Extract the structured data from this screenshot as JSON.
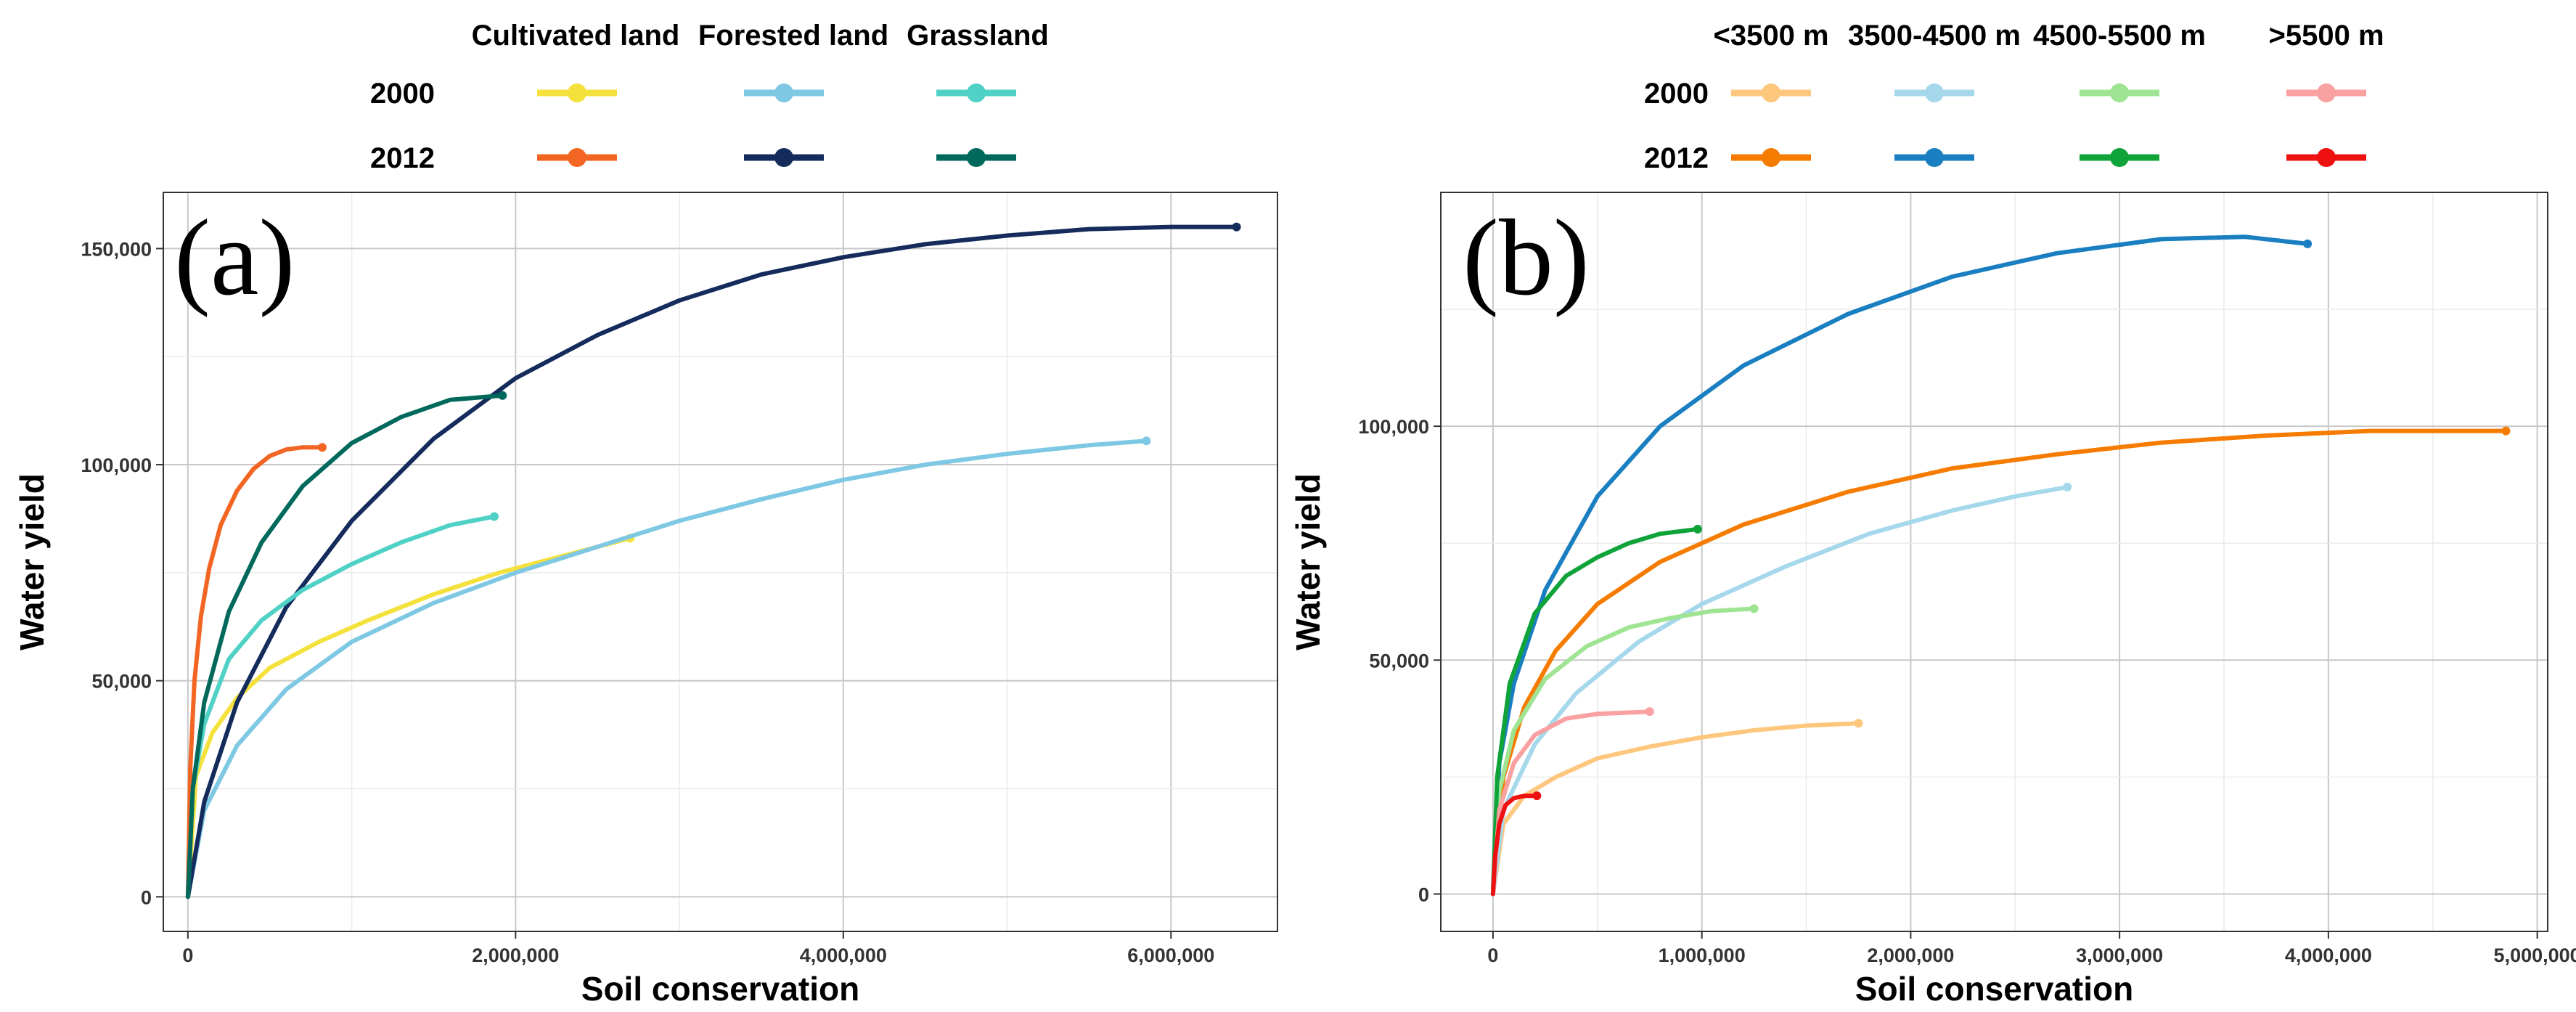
{
  "chart_data": [
    {
      "type": "line",
      "panel_label": "(a)",
      "xlabel": "Soil conservation",
      "ylabel": "Water yield",
      "xlim": [
        -150000,
        6650000
      ],
      "ylim": [
        -8000,
        163000
      ],
      "x_ticks": [
        0,
        2000000,
        4000000,
        6000000
      ],
      "x_tick_labels": [
        "0",
        "2,000,000",
        "4,000,000",
        "6,000,000"
      ],
      "y_ticks": [
        0,
        50000,
        100000,
        150000
      ],
      "y_tick_labels": [
        "0",
        "50,000",
        "100,000",
        "150,000"
      ],
      "grid": true,
      "legend": {
        "placement": "top",
        "columns": [
          "Cultivated land",
          "Forested land",
          "Grassland"
        ],
        "rows": [
          "2000",
          "2012"
        ]
      },
      "series": [
        {
          "name": "Cultivated land",
          "year": "2000",
          "color": "#f5e13c",
          "points": [
            [
              0,
              0
            ],
            [
              50000,
              28000
            ],
            [
              150000,
              38000
            ],
            [
              300000,
              46000
            ],
            [
              500000,
              53000
            ],
            [
              800000,
              59000
            ],
            [
              1100000,
              64000
            ],
            [
              1500000,
              70000
            ],
            [
              1900000,
              75000
            ],
            [
              2300000,
              79000
            ],
            [
              2700000,
              83000
            ]
          ]
        },
        {
          "name": "Cultivated land",
          "year": "2012",
          "color": "#f26522",
          "points": [
            [
              0,
              0
            ],
            [
              15000,
              30000
            ],
            [
              40000,
              50000
            ],
            [
              80000,
              65000
            ],
            [
              130000,
              76000
            ],
            [
              200000,
              86000
            ],
            [
              300000,
              94000
            ],
            [
              400000,
              99000
            ],
            [
              500000,
              102000
            ],
            [
              600000,
              103500
            ],
            [
              700000,
              104000
            ],
            [
              820000,
              104000
            ]
          ]
        },
        {
          "name": "Forested land",
          "year": "2000",
          "color": "#7ec8e3",
          "points": [
            [
              0,
              0
            ],
            [
              100000,
              20000
            ],
            [
              300000,
              35000
            ],
            [
              600000,
              48000
            ],
            [
              1000000,
              59000
            ],
            [
              1500000,
              68000
            ],
            [
              2000000,
              75000
            ],
            [
              2500000,
              81000
            ],
            [
              3000000,
              87000
            ],
            [
              3500000,
              92000
            ],
            [
              4000000,
              96500
            ],
            [
              4500000,
              100000
            ],
            [
              5000000,
              102500
            ],
            [
              5500000,
              104500
            ],
            [
              5850000,
              105500
            ]
          ]
        },
        {
          "name": "Forested land",
          "year": "2012",
          "color": "#142b5c",
          "points": [
            [
              0,
              0
            ],
            [
              100000,
              22000
            ],
            [
              300000,
              45000
            ],
            [
              600000,
              67000
            ],
            [
              1000000,
              87000
            ],
            [
              1500000,
              106000
            ],
            [
              2000000,
              120000
            ],
            [
              2500000,
              130000
            ],
            [
              3000000,
              138000
            ],
            [
              3500000,
              144000
            ],
            [
              4000000,
              148000
            ],
            [
              4500000,
              151000
            ],
            [
              5000000,
              153000
            ],
            [
              5500000,
              154500
            ],
            [
              6000000,
              155000
            ],
            [
              6400000,
              155000
            ]
          ]
        },
        {
          "name": "Grassland",
          "year": "2000",
          "color": "#4fd1c5",
          "points": [
            [
              0,
              0
            ],
            [
              30000,
              25000
            ],
            [
              100000,
              40000
            ],
            [
              250000,
              55000
            ],
            [
              450000,
              64000
            ],
            [
              700000,
              71000
            ],
            [
              1000000,
              77000
            ],
            [
              1300000,
              82000
            ],
            [
              1600000,
              86000
            ],
            [
              1870000,
              88000
            ]
          ]
        },
        {
          "name": "Grassland",
          "year": "2012",
          "color": "#00695c",
          "points": [
            [
              0,
              0
            ],
            [
              30000,
              25000
            ],
            [
              100000,
              45000
            ],
            [
              250000,
              66000
            ],
            [
              450000,
              82000
            ],
            [
              700000,
              95000
            ],
            [
              1000000,
              105000
            ],
            [
              1300000,
              111000
            ],
            [
              1600000,
              115000
            ],
            [
              1920000,
              116000
            ]
          ]
        }
      ]
    },
    {
      "type": "line",
      "panel_label": "(b)",
      "xlabel": "Soil conservation",
      "ylabel": "Water yield",
      "xlim": [
        -250000,
        5050000
      ],
      "ylim": [
        -8000,
        150000
      ],
      "x_ticks": [
        0,
        1000000,
        2000000,
        3000000,
        4000000,
        5000000
      ],
      "x_tick_labels": [
        "0",
        "1,000,000",
        "2,000,000",
        "3,000,000",
        "4,000,000",
        "5,000,000"
      ],
      "y_ticks": [
        0,
        50000,
        100000
      ],
      "y_tick_labels": [
        "0",
        "50,000",
        "100,000"
      ],
      "grid": true,
      "legend": {
        "placement": "top",
        "columns": [
          "<3500 m",
          "3500-4500 m",
          "4500-5500 m",
          ">5500 m"
        ],
        "rows": [
          "2000",
          "2012"
        ]
      },
      "series": [
        {
          "name": "<3500 m",
          "year": "2000",
          "color": "#fdc77e",
          "points": [
            [
              0,
              0
            ],
            [
              50000,
              15000
            ],
            [
              150000,
              21000
            ],
            [
              300000,
              25000
            ],
            [
              500000,
              29000
            ],
            [
              750000,
              31500
            ],
            [
              1000000,
              33500
            ],
            [
              1250000,
              35000
            ],
            [
              1500000,
              36000
            ],
            [
              1750000,
              36500
            ]
          ]
        },
        {
          "name": "<3500 m",
          "year": "2012",
          "color": "#f57c00",
          "points": [
            [
              0,
              0
            ],
            [
              50000,
              25000
            ],
            [
              150000,
              40000
            ],
            [
              300000,
              52000
            ],
            [
              500000,
              62000
            ],
            [
              800000,
              71000
            ],
            [
              1200000,
              79000
            ],
            [
              1700000,
              86000
            ],
            [
              2200000,
              91000
            ],
            [
              2700000,
              94000
            ],
            [
              3200000,
              96500
            ],
            [
              3700000,
              98000
            ],
            [
              4200000,
              99000
            ],
            [
              4850000,
              99000
            ]
          ]
        },
        {
          "name": "3500-4500 m",
          "year": "2000",
          "color": "#a6d8ec",
          "points": [
            [
              0,
              0
            ],
            [
              50000,
              18000
            ],
            [
              200000,
              32000
            ],
            [
              400000,
              43000
            ],
            [
              700000,
              54000
            ],
            [
              1000000,
              62000
            ],
            [
              1400000,
              70000
            ],
            [
              1800000,
              77000
            ],
            [
              2200000,
              82000
            ],
            [
              2500000,
              85000
            ],
            [
              2750000,
              87000
            ]
          ]
        },
        {
          "name": "3500-4500 m",
          "year": "2012",
          "color": "#1a7fc1",
          "points": [
            [
              0,
              0
            ],
            [
              30000,
              28000
            ],
            [
              100000,
              45000
            ],
            [
              250000,
              65000
            ],
            [
              500000,
              85000
            ],
            [
              800000,
              100000
            ],
            [
              1200000,
              113000
            ],
            [
              1700000,
              124000
            ],
            [
              2200000,
              132000
            ],
            [
              2700000,
              137000
            ],
            [
              3200000,
              140000
            ],
            [
              3600000,
              140500
            ],
            [
              3900000,
              139000
            ]
          ]
        },
        {
          "name": "4500-5500 m",
          "year": "2000",
          "color": "#9ee493",
          "points": [
            [
              0,
              0
            ],
            [
              30000,
              22000
            ],
            [
              100000,
              35000
            ],
            [
              250000,
              46000
            ],
            [
              450000,
              53000
            ],
            [
              650000,
              57000
            ],
            [
              850000,
              59000
            ],
            [
              1050000,
              60500
            ],
            [
              1250000,
              61000
            ]
          ]
        },
        {
          "name": "4500-5500 m",
          "year": "2012",
          "color": "#0fa33a",
          "points": [
            [
              0,
              0
            ],
            [
              20000,
              25000
            ],
            [
              80000,
              45000
            ],
            [
              200000,
              60000
            ],
            [
              350000,
              68000
            ],
            [
              500000,
              72000
            ],
            [
              650000,
              75000
            ],
            [
              800000,
              77000
            ],
            [
              980000,
              78000
            ]
          ]
        },
        {
          "name": ">5500 m",
          "year": "2000",
          "color": "#f9a0a0",
          "points": [
            [
              0,
              0
            ],
            [
              30000,
              18000
            ],
            [
              100000,
              28000
            ],
            [
              200000,
              34000
            ],
            [
              350000,
              37500
            ],
            [
              500000,
              38500
            ],
            [
              750000,
              39000
            ]
          ]
        },
        {
          "name": ">5500 m",
          "year": "2012",
          "color": "#ee1111",
          "points": [
            [
              0,
              0
            ],
            [
              10000,
              8000
            ],
            [
              30000,
              15000
            ],
            [
              60000,
              19000
            ],
            [
              100000,
              20500
            ],
            [
              150000,
              21000
            ],
            [
              210000,
              21000
            ]
          ]
        }
      ]
    }
  ]
}
